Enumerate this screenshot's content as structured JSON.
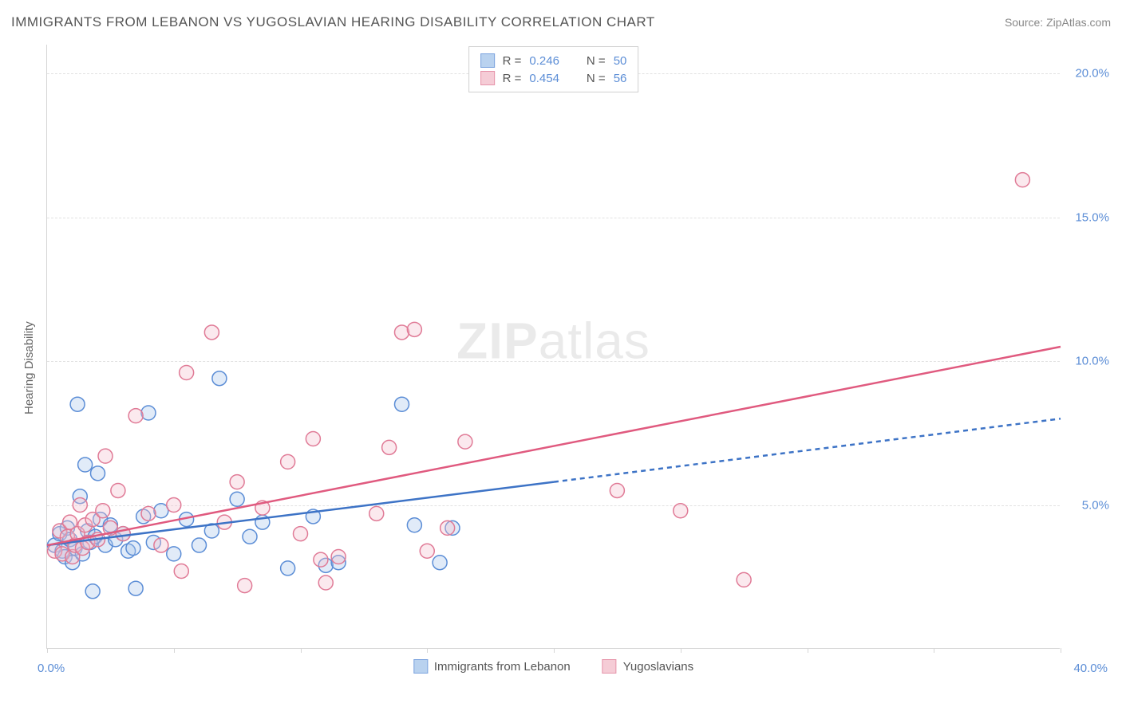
{
  "title": "IMMIGRANTS FROM LEBANON VS YUGOSLAVIAN HEARING DISABILITY CORRELATION CHART",
  "source_label": "Source: ZipAtlas.com",
  "watermark": {
    "bold": "ZIP",
    "rest": "atlas"
  },
  "y_axis_label": "Hearing Disability",
  "chart": {
    "type": "scatter",
    "background_color": "#ffffff",
    "grid_color": "#e2e2e2",
    "axis_color": "#d6d6d6",
    "tick_label_color": "#5b8dd6",
    "axis_label_color": "#666666",
    "title_color": "#555555",
    "title_fontsize": 17,
    "label_fontsize": 15,
    "xlim": [
      0,
      40
    ],
    "ylim": [
      0,
      21
    ],
    "y_gridlines": [
      5,
      10,
      15,
      20
    ],
    "y_tick_labels": [
      "5.0%",
      "10.0%",
      "15.0%",
      "20.0%"
    ],
    "x_ticks": [
      0,
      20,
      40
    ],
    "x_tick_labels": [
      "0.0%",
      "",
      "40.0%"
    ],
    "x_tick_marks_every": 5,
    "marker_radius": 9,
    "marker_fill_opacity": 0.35,
    "marker_stroke_width": 1.5,
    "trend_line_width": 2.5,
    "trend_dash_pattern": "6,5"
  },
  "series": [
    {
      "id": "lebanon",
      "label": "Immigrants from Lebanon",
      "color": "#6fa3e0",
      "fill": "#a8c7ec",
      "stroke": "#5b8dd6",
      "r_value": "0.246",
      "n_value": "50",
      "trend": {
        "from": [
          0,
          3.6
        ],
        "to_solid": [
          20,
          5.8
        ],
        "to_dashed": [
          40,
          8.0
        ],
        "color": "#3d73c6"
      },
      "points": [
        [
          0.3,
          3.6
        ],
        [
          0.5,
          4.0
        ],
        [
          0.6,
          3.4
        ],
        [
          0.7,
          3.2
        ],
        [
          0.8,
          4.2
        ],
        [
          0.9,
          3.8
        ],
        [
          1.0,
          3.0
        ],
        [
          1.1,
          3.5
        ],
        [
          1.2,
          8.5
        ],
        [
          1.3,
          5.3
        ],
        [
          1.4,
          3.3
        ],
        [
          1.5,
          6.4
        ],
        [
          1.6,
          4.1
        ],
        [
          1.7,
          3.7
        ],
        [
          1.8,
          2.0
        ],
        [
          1.9,
          3.9
        ],
        [
          2.0,
          6.1
        ],
        [
          2.1,
          4.5
        ],
        [
          2.3,
          3.6
        ],
        [
          2.5,
          4.3
        ],
        [
          2.7,
          3.8
        ],
        [
          3.0,
          4.0
        ],
        [
          3.2,
          3.4
        ],
        [
          3.4,
          3.5
        ],
        [
          3.5,
          2.1
        ],
        [
          3.8,
          4.6
        ],
        [
          4.0,
          8.2
        ],
        [
          4.2,
          3.7
        ],
        [
          4.5,
          4.8
        ],
        [
          5.0,
          3.3
        ],
        [
          5.5,
          4.5
        ],
        [
          6.0,
          3.6
        ],
        [
          6.5,
          4.1
        ],
        [
          6.8,
          9.4
        ],
        [
          7.5,
          5.2
        ],
        [
          8.0,
          3.9
        ],
        [
          8.5,
          4.4
        ],
        [
          9.5,
          2.8
        ],
        [
          10.5,
          4.6
        ],
        [
          11.0,
          2.9
        ],
        [
          11.5,
          3.0
        ],
        [
          14.0,
          8.5
        ],
        [
          14.5,
          4.3
        ],
        [
          15.5,
          3.0
        ],
        [
          16.0,
          4.2
        ]
      ]
    },
    {
      "id": "yugoslavians",
      "label": "Yugoslavians",
      "color": "#e89bb0",
      "fill": "#f3c0cd",
      "stroke": "#e07a96",
      "r_value": "0.454",
      "n_value": "56",
      "trend": {
        "from": [
          0,
          3.6
        ],
        "to_solid": [
          40,
          10.5
        ],
        "to_dashed": null,
        "color": "#e05a7f"
      },
      "points": [
        [
          0.3,
          3.4
        ],
        [
          0.5,
          4.1
        ],
        [
          0.6,
          3.3
        ],
        [
          0.8,
          3.9
        ],
        [
          0.9,
          4.4
        ],
        [
          1.0,
          3.2
        ],
        [
          1.1,
          3.6
        ],
        [
          1.2,
          4.0
        ],
        [
          1.3,
          5.0
        ],
        [
          1.4,
          3.5
        ],
        [
          1.5,
          4.3
        ],
        [
          1.6,
          3.7
        ],
        [
          1.8,
          4.5
        ],
        [
          2.0,
          3.8
        ],
        [
          2.2,
          4.8
        ],
        [
          2.3,
          6.7
        ],
        [
          2.5,
          4.2
        ],
        [
          2.8,
          5.5
        ],
        [
          3.0,
          4.0
        ],
        [
          3.5,
          8.1
        ],
        [
          4.0,
          4.7
        ],
        [
          4.5,
          3.6
        ],
        [
          5.0,
          5.0
        ],
        [
          5.3,
          2.7
        ],
        [
          5.5,
          9.6
        ],
        [
          6.5,
          11.0
        ],
        [
          7.0,
          4.4
        ],
        [
          7.5,
          5.8
        ],
        [
          7.8,
          2.2
        ],
        [
          8.5,
          4.9
        ],
        [
          9.5,
          6.5
        ],
        [
          10.0,
          4.0
        ],
        [
          10.5,
          7.3
        ],
        [
          10.8,
          3.1
        ],
        [
          11.0,
          2.3
        ],
        [
          11.5,
          3.2
        ],
        [
          13.0,
          4.7
        ],
        [
          13.5,
          7.0
        ],
        [
          14.0,
          11.0
        ],
        [
          14.5,
          11.1
        ],
        [
          15.0,
          3.4
        ],
        [
          15.8,
          4.2
        ],
        [
          16.5,
          7.2
        ],
        [
          22.5,
          5.5
        ],
        [
          25.0,
          4.8
        ],
        [
          27.5,
          2.4
        ],
        [
          38.5,
          16.3
        ]
      ]
    }
  ],
  "legend_top": {
    "r_label": "R =",
    "n_label": "N ="
  }
}
